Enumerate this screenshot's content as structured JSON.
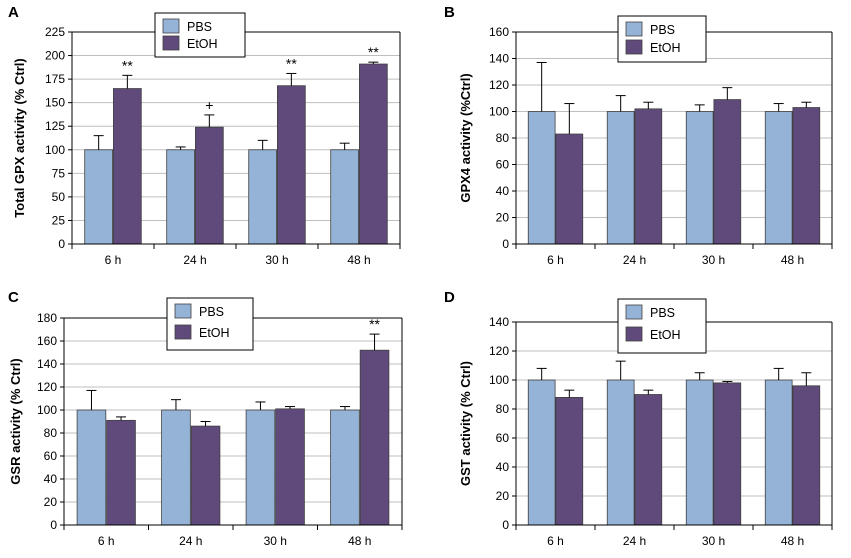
{
  "colors": {
    "pbs": "#95b3d7",
    "etoh": "#604a7b",
    "axis": "#000000",
    "grid": "#bfbfbf"
  },
  "chart_data": [
    {
      "panel": "A",
      "type": "bar",
      "categories": [
        "6 h",
        "24 h",
        "30 h",
        "48 h"
      ],
      "series": [
        {
          "name": "PBS",
          "values": [
            100,
            100,
            100,
            100
          ],
          "errors": [
            15,
            3,
            10,
            7
          ]
        },
        {
          "name": "EtOH",
          "values": [
            165,
            124,
            168,
            191
          ],
          "errors": [
            14,
            13,
            13,
            2
          ]
        }
      ],
      "annotations": [
        "**",
        "+",
        "**",
        "**"
      ],
      "ylabel": "Total GPX activity  (% Ctrl)",
      "ylim": [
        0,
        225
      ],
      "ytick_step": 25,
      "yticks": [
        "0",
        "25",
        "50",
        "75",
        "100",
        "125",
        "150",
        "175",
        "200",
        "225"
      ],
      "legend": [
        "PBS",
        "EtOH"
      ],
      "legend_position": "top-center"
    },
    {
      "panel": "B",
      "type": "bar",
      "categories": [
        "6 h",
        "24 h",
        "30 h",
        "48 h"
      ],
      "series": [
        {
          "name": "PBS",
          "values": [
            100,
            100,
            100,
            100
          ],
          "errors": [
            37,
            12,
            5,
            6
          ]
        },
        {
          "name": "EtOH",
          "values": [
            83,
            102,
            109,
            103
          ],
          "errors": [
            23,
            5,
            9,
            4
          ]
        }
      ],
      "annotations": [
        "",
        "",
        "",
        ""
      ],
      "ylabel": "GPX4 activity (%Ctrl)",
      "ylim": [
        0,
        160
      ],
      "ytick_step": 20,
      "yticks": [
        "0",
        "20",
        "40",
        "60",
        "80",
        "100",
        "120",
        "140",
        "160"
      ],
      "legend": [
        "PBS",
        "EtOH"
      ],
      "legend_position": "top-center"
    },
    {
      "panel": "C",
      "type": "bar",
      "categories": [
        "6 h",
        "24 h",
        "30 h",
        "48 h"
      ],
      "series": [
        {
          "name": "PBS",
          "values": [
            100,
            100,
            100,
            100
          ],
          "errors": [
            17,
            9,
            7,
            3
          ]
        },
        {
          "name": "EtOH",
          "values": [
            91,
            86,
            101,
            152
          ],
          "errors": [
            3,
            4,
            2,
            14
          ]
        }
      ],
      "annotations": [
        "",
        "",
        "",
        "**"
      ],
      "ylabel": "GSR activity (% Ctrl)",
      "ylim": [
        0,
        180
      ],
      "ytick_step": 20,
      "yticks": [
        "0",
        "20",
        "40",
        "60",
        "80",
        "100",
        "120",
        "140",
        "160",
        "180"
      ],
      "legend": [
        "PBS",
        "EtOH"
      ],
      "legend_position": "top-left"
    },
    {
      "panel": "D",
      "type": "bar",
      "categories": [
        "6 h",
        "24 h",
        "30 h",
        "48 h"
      ],
      "series": [
        {
          "name": "PBS",
          "values": [
            100,
            100,
            100,
            100
          ],
          "errors": [
            8,
            13,
            5,
            8
          ]
        },
        {
          "name": "EtOH",
          "values": [
            88,
            90,
            98,
            96
          ],
          "errors": [
            5,
            3,
            1,
            9
          ]
        }
      ],
      "annotations": [
        "",
        "",
        "",
        ""
      ],
      "ylabel": "GST activity (% Ctrl)",
      "ylim": [
        0,
        140
      ],
      "ytick_step": 20,
      "yticks": [
        "0",
        "20",
        "40",
        "60",
        "80",
        "100",
        "120",
        "140"
      ],
      "legend": [
        "PBS",
        "EtOH"
      ],
      "legend_position": "top-center"
    }
  ]
}
